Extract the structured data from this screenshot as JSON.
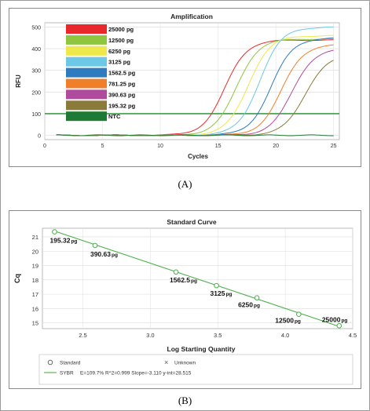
{
  "figure_a": {
    "caption": "(A)"
  },
  "figure_b": {
    "caption": "(B)"
  },
  "chart_data": [
    {
      "type": "line",
      "title": "Amplification",
      "xlabel": "Cycles",
      "ylabel": "RFU",
      "xlim": [
        0,
        25.5
      ],
      "ylim": [
        -20,
        520
      ],
      "xticks": [
        0,
        5,
        10,
        15,
        20,
        25
      ],
      "yticks": [
        0,
        100,
        200,
        300,
        400,
        500
      ],
      "legend_position": "top-left",
      "threshold": {
        "value": 100,
        "color": "#1e8a2c"
      },
      "series": [
        {
          "name": "25000 pg",
          "color": "#e8282a",
          "midpoint": 15.6,
          "plateau": 440
        },
        {
          "name": "12500 pg",
          "color": "#8ec63f",
          "midpoint": 16.6,
          "plateau": 445
        },
        {
          "name": "6250 pg",
          "color": "#eee84a",
          "midpoint": 17.6,
          "plateau": 460
        },
        {
          "name": "3125 pg",
          "color": "#6cc8e6",
          "midpoint": 18.6,
          "plateau": 500
        },
        {
          "name": "1562.5 pg",
          "color": "#2f7bbf",
          "midpoint": 19.6,
          "plateau": 450
        },
        {
          "name": "781.25 pg",
          "color": "#f07f2a",
          "midpoint": 20.5,
          "plateau": 420
        },
        {
          "name": "390.63 pg",
          "color": "#b04a9c",
          "midpoint": 21.4,
          "plateau": 400
        },
        {
          "name": "195.32 pg",
          "color": "#8b7b3a",
          "midpoint": 22.5,
          "plateau": 370
        },
        {
          "name": "NTC",
          "color": "#1e7a34",
          "midpoint": null,
          "plateau": 0
        }
      ]
    },
    {
      "type": "scatter",
      "title": "Standard Curve",
      "xlabel": "Log Starting Quantity",
      "ylabel": "Cq",
      "xlim": [
        2.2,
        4.5
      ],
      "ylim": [
        14.6,
        21.6
      ],
      "xticks": [
        2.5,
        3.0,
        3.5,
        4.0,
        4.5
      ],
      "yticks": [
        15,
        16,
        17,
        18,
        19,
        20,
        21
      ],
      "fit_color": "#48b048",
      "points": [
        {
          "x": 2.29,
          "y": 21.35,
          "label": "195.32",
          "unit": "pg"
        },
        {
          "x": 2.59,
          "y": 20.4,
          "label": "390.63",
          "unit": "pg"
        },
        {
          "x": 3.19,
          "y": 18.55,
          "label": "1562.5",
          "unit": "pg"
        },
        {
          "x": 3.49,
          "y": 17.6,
          "label": "3125",
          "unit": "pg"
        },
        {
          "x": 3.79,
          "y": 16.75,
          "label": "6250",
          "unit": "pg"
        },
        {
          "x": 4.1,
          "y": 15.6,
          "label": "12500",
          "unit": "pg"
        },
        {
          "x": 4.4,
          "y": 14.8,
          "label": "25000",
          "unit": "pg"
        }
      ],
      "fit": {
        "x": [
          2.29,
          4.4
        ],
        "y": [
          21.4,
          14.75
        ]
      },
      "legend": {
        "standard": "Standard",
        "unknown": "Unknown",
        "fit_name": "SYBR",
        "fit_stats": "E=109.7% R^2=0.999 Slope=-3.110 y-int=28.515"
      }
    }
  ]
}
